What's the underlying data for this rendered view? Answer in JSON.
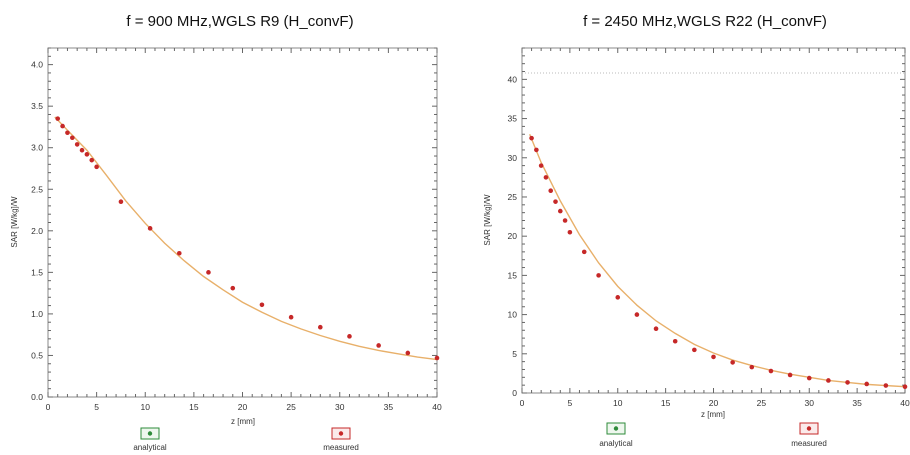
{
  "chart_data": [
    {
      "type": "scatter",
      "title": "f = 900 MHz,WGLS R9 (H_convF)",
      "xlabel": "z [mm]",
      "ylabel": "SAR [W/kg]/W",
      "xlim": [
        0,
        40
      ],
      "ylim": [
        0,
        4.2
      ],
      "xticks": [
        "0",
        "5",
        "10",
        "15",
        "20",
        "25",
        "30",
        "35",
        "40"
      ],
      "yticks": [
        "0.0",
        "0.5",
        "1.0",
        "1.5",
        "2.0",
        "2.5",
        "3.0",
        "3.5",
        "4.0"
      ],
      "grid": false,
      "legend": {
        "entries": [
          "analytical",
          "measured"
        ],
        "placement": "bottom"
      },
      "series": [
        {
          "name": "analytical",
          "style": "line",
          "x": [
            0.7,
            2,
            4,
            6,
            8,
            10,
            12,
            14,
            16,
            18,
            20,
            22,
            24,
            26,
            28,
            30,
            32,
            34,
            36,
            38,
            40
          ],
          "y": [
            3.37,
            3.21,
            2.97,
            2.67,
            2.36,
            2.09,
            1.85,
            1.64,
            1.45,
            1.29,
            1.14,
            1.02,
            0.91,
            0.82,
            0.74,
            0.67,
            0.61,
            0.56,
            0.52,
            0.48,
            0.45
          ]
        },
        {
          "name": "measured",
          "style": "markers",
          "x": [
            1.0,
            1.5,
            2.0,
            2.5,
            3.0,
            3.5,
            4.0,
            4.5,
            5.0,
            7.5,
            10.5,
            13.5,
            16.5,
            19.0,
            22.0,
            25.0,
            28.0,
            31.0,
            34.0,
            37.0,
            40.0
          ],
          "y": [
            3.35,
            3.26,
            3.18,
            3.12,
            3.04,
            2.97,
            2.92,
            2.85,
            2.77,
            2.35,
            2.03,
            1.73,
            1.5,
            1.31,
            1.11,
            0.96,
            0.84,
            0.73,
            0.62,
            0.53,
            0.47
          ]
        }
      ],
      "colors": {
        "analytical": "#e8b06a",
        "measured": "#c62828",
        "legend_analytical": "#2e8b3a"
      }
    },
    {
      "type": "scatter",
      "title": "f = 2450 MHz,WGLS R22 (H_convF)",
      "xlabel": "z [mm]",
      "ylabel": "SAR [W/kg]/W",
      "xlim": [
        0,
        40
      ],
      "ylim": [
        0,
        44
      ],
      "xticks": [
        "0",
        "5",
        "10",
        "15",
        "20",
        "25",
        "30",
        "35",
        "40"
      ],
      "yticks": [
        "0",
        "5",
        "10",
        "15",
        "20",
        "25",
        "30",
        "35",
        "40"
      ],
      "grid": false,
      "legend": {
        "entries": [
          "analytical",
          "measured"
        ],
        "placement": "bottom"
      },
      "series": [
        {
          "name": "analytical",
          "style": "line",
          "x": [
            0.8,
            2,
            4,
            6,
            8,
            10,
            12,
            14,
            16,
            18,
            20,
            22,
            24,
            26,
            28,
            30,
            32,
            34,
            36,
            38,
            40
          ],
          "y": [
            33.0,
            29.4,
            24.5,
            20.2,
            16.6,
            13.6,
            11.2,
            9.2,
            7.6,
            6.2,
            5.1,
            4.2,
            3.5,
            2.9,
            2.4,
            2.0,
            1.6,
            1.35,
            1.1,
            0.95,
            0.8
          ]
        },
        {
          "name": "measured",
          "style": "markers",
          "x": [
            1.0,
            1.5,
            2.0,
            2.5,
            3.0,
            3.5,
            4.0,
            4.5,
            5.0,
            6.5,
            8.0,
            10.0,
            12.0,
            14.0,
            16.0,
            18.0,
            20.0,
            22.0,
            24.0,
            26.0,
            28.0,
            30.0,
            32.0,
            34.0,
            36.0,
            38.0,
            40.0
          ],
          "y": [
            32.5,
            31.0,
            29.0,
            27.5,
            25.8,
            24.4,
            23.2,
            22.0,
            20.5,
            18.0,
            15.0,
            12.2,
            10.0,
            8.2,
            6.6,
            5.5,
            4.6,
            3.9,
            3.3,
            2.8,
            2.3,
            1.9,
            1.6,
            1.35,
            1.15,
            0.95,
            0.8
          ]
        }
      ],
      "colors": {
        "analytical": "#e8b06a",
        "measured": "#c62828",
        "legend_analytical": "#2e8b3a"
      }
    }
  ]
}
